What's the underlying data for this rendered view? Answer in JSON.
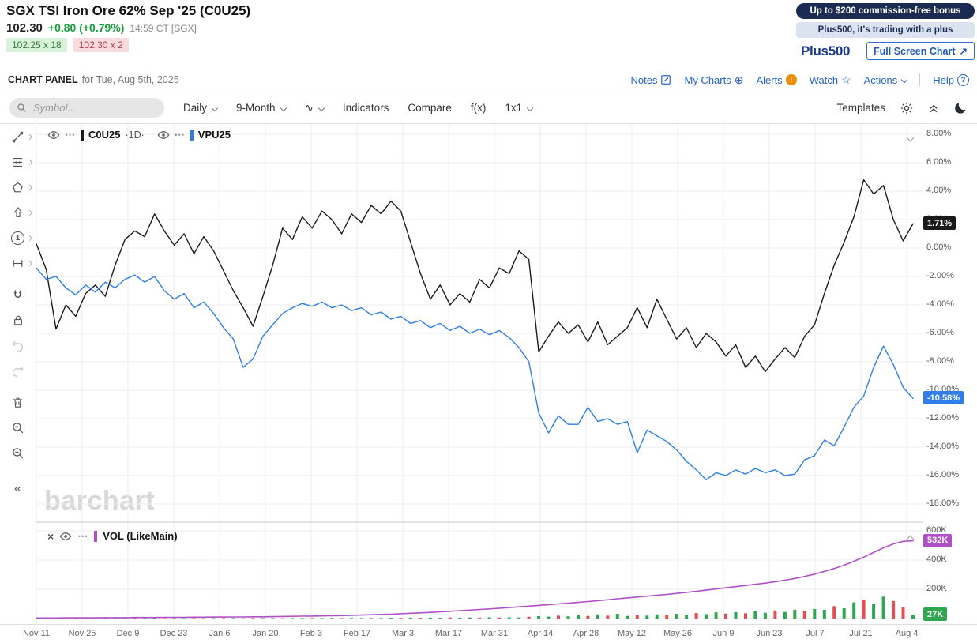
{
  "quote": {
    "title": "SGX TSI Iron Ore 62% Sep '25 (C0U25)",
    "last": "102.30",
    "change": "+0.80 (+0.79%)",
    "timestamp": "14:59 CT [SGX]",
    "bid": "102.25 x 18",
    "ask": "102.30 x 2"
  },
  "ad": {
    "banner": "Up to $200 commission-free bonus",
    "tagline": "Plus500, it's trading with a plus",
    "logo": "Plus500",
    "fullscreen_label": "Full Screen Chart"
  },
  "panel_bar": {
    "title": "CHART PANEL",
    "subtitle": "for Tue, Aug 5th, 2025",
    "notes": "Notes",
    "my_charts": "My Charts",
    "alerts": "Alerts",
    "watch": "Watch",
    "actions": "Actions",
    "help": "Help",
    "alert_badge": "!",
    "help_badge": "?"
  },
  "toolbar": {
    "search_placeholder": "Symbol...",
    "period": "Daily",
    "range": "9-Month",
    "indicators": "Indicators",
    "compare": "Compare",
    "fx": "f(x)",
    "grid": "1x1",
    "templates": "Templates"
  },
  "icons": {
    "menu_dots": "⋯",
    "close": "×",
    "star": "☆",
    "circle_plus": "⊕",
    "collapse_left": "«",
    "wave": "∿",
    "expand_arrow": "↗",
    "numbered_one": "1"
  },
  "colors": {
    "link_blue": "#2563c9",
    "ad_navy": "#1c2b52",
    "positive_green": "#13a03b",
    "alert_orange": "#f08c00"
  },
  "watermark": "barchart",
  "chart_data": {
    "type": "line",
    "title": "9-Month daily percent-change comparison with volume",
    "legend_position": "top-left",
    "grid": true,
    "x_ticks": [
      "Nov 11",
      "Nov 25",
      "Dec 9",
      "Dec 23",
      "Jan 6",
      "Jan 20",
      "Feb 3",
      "Feb 17",
      "Mar 3",
      "Mar 17",
      "Mar 31",
      "Apr 14",
      "Apr 28",
      "May 12",
      "May 26",
      "Jun 9",
      "Jun 23",
      "Jul 7",
      "Jul 21",
      "Aug 4"
    ],
    "y_axis": {
      "unit": "%",
      "min": -19,
      "max": 8.8,
      "values": [
        8,
        6,
        4,
        2,
        0,
        -2,
        -4,
        -6,
        -8,
        -10,
        -12,
        -14,
        -16,
        -18
      ],
      "labels": [
        "8.00%",
        "6.00%",
        "4.00%",
        "2.00%",
        "0.00%",
        "-2.00%",
        "-4.00%",
        "-6.00%",
        "-8.00%",
        "-10.00%",
        "-12.00%",
        "-14.00%",
        "-16.00%",
        "-18.00%"
      ]
    },
    "series": [
      {
        "name": "C0U25",
        "interval_label": "·1D·",
        "color": "#1a1a1a",
        "last_value": 1.71,
        "last_label": "1.71%",
        "values": [
          0.3,
          -1.5,
          -5.7,
          -4.0,
          -4.8,
          -3.2,
          -2.6,
          -3.4,
          -1.2,
          0.6,
          1.2,
          0.8,
          2.4,
          1.2,
          0.2,
          1.0,
          -0.4,
          0.8,
          -0.2,
          -1.6,
          -3.0,
          -4.2,
          -5.5,
          -3.4,
          -1.2,
          1.4,
          0.6,
          2.2,
          1.4,
          2.6,
          2.0,
          1.0,
          2.4,
          1.8,
          3.0,
          2.4,
          3.3,
          2.6,
          0.4,
          -1.8,
          -3.6,
          -2.6,
          -4.0,
          -3.2,
          -3.8,
          -2.2,
          -2.8,
          -1.4,
          -1.8,
          -0.2,
          -0.8,
          -7.3,
          -6.2,
          -5.2,
          -6.0,
          -5.4,
          -6.6,
          -5.2,
          -6.8,
          -6.2,
          -5.6,
          -4.2,
          -5.6,
          -3.6,
          -5.0,
          -6.4,
          -5.6,
          -7.0,
          -6.0,
          -6.6,
          -7.6,
          -6.8,
          -8.4,
          -7.6,
          -8.7,
          -7.8,
          -7.0,
          -7.7,
          -6.2,
          -5.4,
          -3.2,
          -1.2,
          0.4,
          2.2,
          4.8,
          3.8,
          4.4,
          2.0,
          0.5,
          1.71
        ]
      },
      {
        "name": "VPU25",
        "color": "#2e7de9",
        "last_value": -10.58,
        "last_label": "-10.58%",
        "values": [
          -1.4,
          -2.2,
          -2.0,
          -2.8,
          -3.3,
          -2.6,
          -3.1,
          -2.4,
          -2.8,
          -2.2,
          -1.9,
          -2.4,
          -2.0,
          -3.0,
          -3.6,
          -3.2,
          -4.2,
          -3.8,
          -4.6,
          -5.6,
          -6.4,
          -8.4,
          -7.8,
          -6.2,
          -5.4,
          -4.6,
          -4.2,
          -3.9,
          -4.1,
          -3.8,
          -4.2,
          -4.0,
          -4.4,
          -4.2,
          -4.7,
          -4.5,
          -5.0,
          -4.8,
          -5.3,
          -5.1,
          -5.6,
          -5.3,
          -5.8,
          -5.5,
          -6.0,
          -5.7,
          -6.1,
          -5.8,
          -6.3,
          -7.0,
          -8.0,
          -11.6,
          -13.0,
          -11.8,
          -12.4,
          -12.4,
          -11.2,
          -12.2,
          -12.0,
          -12.4,
          -12.2,
          -14.4,
          -12.8,
          -13.2,
          -13.6,
          -14.2,
          -15.0,
          -15.6,
          -16.3,
          -15.8,
          -16.0,
          -15.6,
          -15.9,
          -15.5,
          -15.8,
          -15.6,
          -16.0,
          -15.9,
          -14.9,
          -14.6,
          -13.5,
          -13.9,
          -12.6,
          -11.2,
          -10.4,
          -8.4,
          -6.9,
          -8.2,
          -9.8,
          -10.58
        ]
      }
    ],
    "volume": {
      "name": "VOL (LikeMain)",
      "unit": "K",
      "axis": {
        "values": [
          600,
          400,
          200
        ],
        "labels": [
          "600K",
          "400K",
          "200K"
        ]
      },
      "cumulative": {
        "color": "#b050c8",
        "last_value": 532,
        "last_label": "532K",
        "values": [
          4,
          4,
          4,
          5,
          5,
          5,
          5,
          6,
          6,
          6,
          7,
          7,
          7,
          8,
          8,
          8,
          9,
          9,
          10,
          10,
          11,
          11,
          12,
          12,
          13,
          14,
          15,
          16,
          17,
          18,
          19,
          20,
          22,
          24,
          26,
          28,
          30,
          33,
          36,
          39,
          42,
          46,
          50,
          54,
          58,
          62,
          66,
          70,
          75,
          80,
          85,
          90,
          95,
          100,
          105,
          110,
          116,
          122,
          128,
          135,
          141,
          147,
          153,
          159,
          165,
          172,
          179,
          186,
          194,
          202,
          210,
          218,
          226,
          234,
          242,
          252,
          262,
          274,
          288,
          304,
          322,
          342,
          365,
          392,
          420,
          452,
          484,
          510,
          528,
          532
        ]
      },
      "bars": {
        "up_color": "#2fa64f",
        "down_color": "#e05252",
        "last_value": 27,
        "last_label": "27K",
        "values": [
          2,
          2,
          3,
          2,
          2,
          3,
          2,
          3,
          2,
          2,
          3,
          2,
          3,
          2,
          3,
          2,
          3,
          2,
          3,
          3,
          3,
          2,
          4,
          3,
          3,
          2,
          3,
          4,
          3,
          3,
          4,
          3,
          4,
          3,
          4,
          4,
          5,
          4,
          6,
          5,
          6,
          5,
          7,
          6,
          7,
          6,
          8,
          7,
          8,
          7,
          12,
          16,
          13,
          20,
          15,
          24,
          18,
          28,
          20,
          32,
          18,
          24,
          20,
          28,
          22,
          32,
          26,
          38,
          30,
          42,
          34,
          44,
          36,
          50,
          40,
          55,
          45,
          60,
          50,
          65,
          60,
          85,
          70,
          110,
          130,
          100,
          150,
          120,
          80,
          27
        ],
        "directions": [
          "g",
          "r",
          "g",
          "g",
          "r",
          "g",
          "g",
          "r",
          "g",
          "g",
          "r",
          "g",
          "g",
          "r",
          "g",
          "g",
          "r",
          "g",
          "g",
          "r",
          "g",
          "g",
          "r",
          "g",
          "g",
          "r",
          "g",
          "g",
          "r",
          "g",
          "g",
          "r",
          "g",
          "g",
          "r",
          "g",
          "g",
          "r",
          "g",
          "r",
          "g",
          "g",
          "r",
          "g",
          "g",
          "r",
          "g",
          "r",
          "g",
          "g",
          "r",
          "g",
          "g",
          "r",
          "g",
          "g",
          "r",
          "g",
          "r",
          "g",
          "g",
          "r",
          "g",
          "g",
          "r",
          "g",
          "g",
          "r",
          "g",
          "g",
          "r",
          "g",
          "r",
          "g",
          "g",
          "r",
          "g",
          "g",
          "r",
          "g",
          "g",
          "r",
          "g",
          "g",
          "r",
          "g",
          "g",
          "r",
          "r",
          "g"
        ]
      }
    }
  }
}
